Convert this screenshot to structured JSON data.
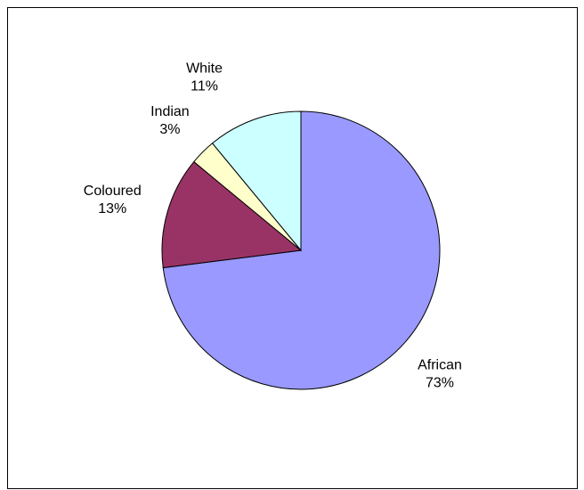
{
  "chart_data": {
    "type": "pie",
    "title": "",
    "start_angle_deg": 0,
    "direction": "clockwise",
    "slices": [
      {
        "name": "African",
        "value": 73,
        "label_pct": "73%",
        "color": "#9999FF"
      },
      {
        "name": "Coloured",
        "value": 13,
        "label_pct": "13%",
        "color": "#993366"
      },
      {
        "name": "Indian",
        "value": 3,
        "label_pct": "3%",
        "color": "#FFFFCC"
      },
      {
        "name": "White",
        "value": 11,
        "label_pct": "11%",
        "color": "#CCFFFF"
      }
    ],
    "legend": "none",
    "border": true
  }
}
